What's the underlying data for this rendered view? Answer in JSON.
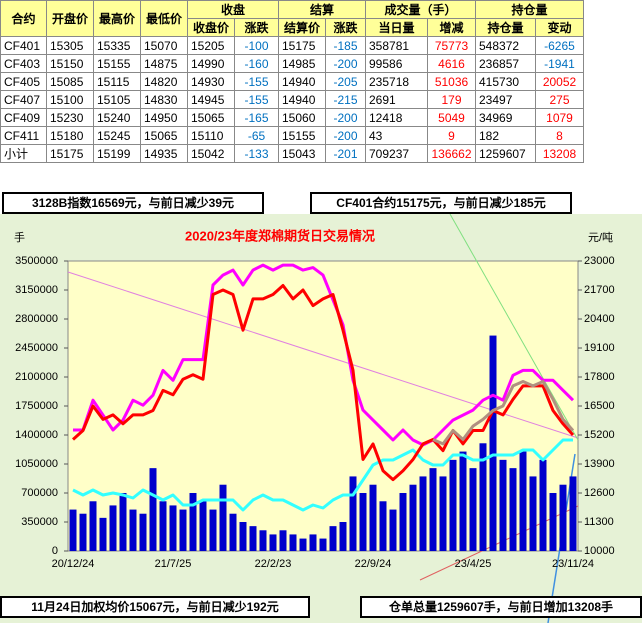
{
  "table": {
    "header_top": [
      "合约",
      "开盘价",
      "最高价",
      "最低价",
      "收盘",
      "结算",
      "成交量（手）",
      "持仓量"
    ],
    "header_sub": [
      "收盘价",
      "涨跌",
      "结算价",
      "涨跌",
      "当日量",
      "增减",
      "持仓量",
      "变动"
    ],
    "rows": [
      [
        "CF401",
        15305,
        15335,
        15070,
        15205,
        -100,
        15175,
        -185,
        358781,
        75773,
        548372,
        -6265
      ],
      [
        "CF403",
        15150,
        15155,
        14875,
        14990,
        -160,
        14985,
        -200,
        99586,
        4616,
        236857,
        -1941
      ],
      [
        "CF405",
        15085,
        15115,
        14820,
        14930,
        -155,
        14940,
        -205,
        235718,
        51036,
        415730,
        20052
      ],
      [
        "CF407",
        15100,
        15105,
        14830,
        14945,
        -155,
        14940,
        -215,
        2691,
        179,
        23497,
        275
      ],
      [
        "CF409",
        15230,
        15240,
        14950,
        15065,
        -165,
        15060,
        -200,
        12418,
        5049,
        34969,
        1079
      ],
      [
        "CF411",
        15180,
        15245,
        15065,
        15110,
        -65,
        15155,
        -200,
        43,
        9,
        182,
        8
      ],
      [
        "小计",
        15175,
        15199,
        14935,
        15042,
        -133,
        15043,
        -201,
        709237,
        136662,
        1259607,
        13208
      ]
    ]
  },
  "notes": [
    "3128B指数16569元，与前日减少39元",
    "CF401合约15175元，与前日减少185元",
    "11月24日加权均价15067元，与前日减少192元",
    "仓单总量1259607手，与前日增加13208手"
  ],
  "chart_data": {
    "type": "combo",
    "title": "2020/23年度郑棉期货日交易情况",
    "y_label": "手",
    "y2_label": "元/吨",
    "categories": [
      "20/12/24",
      null,
      null,
      null,
      null,
      null,
      null,
      null,
      null,
      null,
      "21/7/25",
      null,
      null,
      null,
      null,
      null,
      null,
      null,
      null,
      null,
      "22/2/23",
      null,
      null,
      null,
      null,
      null,
      null,
      null,
      null,
      null,
      "22/9/24",
      null,
      null,
      null,
      null,
      null,
      null,
      null,
      null,
      null,
      "23/4/25",
      null,
      null,
      null,
      null,
      null,
      null,
      null,
      null,
      null,
      "23/11/24"
    ],
    "ylim": [
      0,
      3500000
    ],
    "yticks": [
      0,
      350000,
      700000,
      1050000,
      1400000,
      1750000,
      2100000,
      2450000,
      2800000,
      3150000,
      3500000
    ],
    "y2lim": [
      10000,
      23000
    ],
    "y2ticks": [
      10000,
      11300,
      12600,
      13900,
      15200,
      16500,
      17800,
      19100,
      20400,
      21700,
      23000
    ],
    "series": [
      {
        "type": "bar",
        "color": "#0000cc",
        "axis": "y",
        "values": [
          500000,
          450000,
          600000,
          400000,
          550000,
          700000,
          500000,
          450000,
          1000000,
          600000,
          550000,
          500000,
          700000,
          600000,
          500000,
          800000,
          450000,
          350000,
          300000,
          250000,
          200000,
          250000,
          200000,
          150000,
          200000,
          150000,
          300000,
          350000,
          900000,
          700000,
          800000,
          600000,
          500000,
          700000,
          800000,
          900000,
          1000000,
          900000,
          1100000,
          1200000,
          1000000,
          1300000,
          2600000,
          1100000,
          1000000,
          1200000,
          900000,
          1100000,
          700000,
          800000,
          900000
        ]
      },
      {
        "type": "line",
        "color": "#ff00ff",
        "axis": "y",
        "values": [
          1460000,
          1460000,
          1820000,
          1640000,
          1460000,
          1580000,
          1820000,
          1760000,
          1880000,
          2180000,
          2060000,
          2310000,
          2310000,
          2310000,
          3210000,
          3330000,
          3390000,
          3210000,
          3390000,
          3450000,
          3390000,
          3450000,
          3450000,
          3390000,
          3420000,
          3330000,
          3030000,
          2730000,
          2060000,
          1700000,
          1580000,
          1460000,
          1340000,
          1460000,
          1340000,
          1280000,
          1340000,
          1460000,
          1580000,
          1640000,
          1700000,
          1820000,
          1880000,
          1820000,
          2120000,
          2180000,
          2180000,
          2060000,
          2060000,
          1940000,
          1820000
        ]
      },
      {
        "type": "line",
        "color": "#33ffff",
        "axis": "y",
        "values": [
          736000,
          676000,
          736000,
          676000,
          700000,
          676000,
          640000,
          736000,
          676000,
          616000,
          676000,
          555000,
          555000,
          616000,
          616000,
          616000,
          616000,
          495000,
          616000,
          676000,
          616000,
          616000,
          555000,
          495000,
          555000,
          519000,
          616000,
          676000,
          676000,
          857000,
          1038000,
          1098000,
          1098000,
          1159000,
          1219000,
          1098000,
          1038000,
          1038000,
          1159000,
          1159000,
          1098000,
          1098000,
          1159000,
          1159000,
          1159000,
          1219000,
          1219000,
          1098000,
          1219000,
          1340000,
          1340000
        ]
      },
      {
        "type": "line",
        "color": "#ff0000",
        "axis": "y2",
        "values": [
          15000,
          15400,
          16500,
          15900,
          16100,
          15700,
          16100,
          16100,
          16300,
          17200,
          17000,
          17700,
          17900,
          17700,
          21500,
          21700,
          21500,
          19900,
          21300,
          21300,
          21500,
          21900,
          21300,
          21700,
          21000,
          21300,
          21500,
          19900,
          18100,
          14100,
          14800,
          13600,
          13200,
          13600,
          14100,
          14800,
          15000,
          14500,
          15400,
          14800,
          15400,
          15400,
          16300,
          16100,
          16800,
          17400,
          17400,
          17400,
          16300,
          15700,
          15200
        ]
      },
      {
        "type": "line",
        "color": "#b09080",
        "axis": "y2",
        "values": [
          null,
          null,
          null,
          null,
          null,
          null,
          null,
          null,
          null,
          null,
          null,
          null,
          null,
          null,
          null,
          null,
          null,
          null,
          null,
          null,
          null,
          null,
          null,
          null,
          null,
          null,
          null,
          null,
          null,
          null,
          null,
          null,
          null,
          null,
          null,
          null,
          15000,
          14800,
          15400,
          15000,
          15600,
          15900,
          16300,
          16500,
          17400,
          17600,
          17400,
          17600,
          16800,
          15900,
          15400
        ]
      }
    ]
  }
}
